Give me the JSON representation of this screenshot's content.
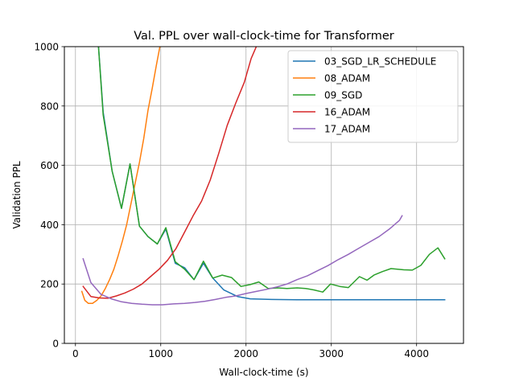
{
  "chart_data": {
    "type": "line",
    "title": "Val. PPL over wall-clock-time for Transformer",
    "xlabel": "Wall-clock-time (s)",
    "ylabel": "Validation PPL",
    "xlim": [
      -130,
      4550
    ],
    "ylim": [
      0,
      1000
    ],
    "xticks": [
      0,
      1000,
      2000,
      3000,
      4000
    ],
    "yticks": [
      0,
      200,
      400,
      600,
      800,
      1000
    ],
    "grid": true,
    "legend_position": "top-right",
    "series": [
      {
        "name": "03_SGD_LR_SCHEDULE",
        "color": "#1f77b4",
        "points": [
          [
            270,
            1000
          ],
          [
            325,
            780
          ],
          [
            430,
            580
          ],
          [
            540,
            455
          ],
          [
            640,
            605
          ],
          [
            750,
            395
          ],
          [
            850,
            360
          ],
          [
            960,
            335
          ],
          [
            1060,
            385
          ],
          [
            1170,
            270
          ],
          [
            1280,
            255
          ],
          [
            1390,
            215
          ],
          [
            1500,
            270
          ],
          [
            1610,
            220
          ],
          [
            1740,
            180
          ],
          [
            1900,
            158
          ],
          [
            2050,
            150
          ],
          [
            2300,
            148
          ],
          [
            2600,
            147
          ],
          [
            3000,
            147
          ],
          [
            3500,
            147
          ],
          [
            4000,
            147
          ],
          [
            4330,
            147
          ]
        ]
      },
      {
        "name": "08_ADAM",
        "color": "#ff7f0e",
        "points": [
          [
            75,
            175
          ],
          [
            110,
            145
          ],
          [
            150,
            135
          ],
          [
            200,
            135
          ],
          [
            250,
            145
          ],
          [
            300,
            160
          ],
          [
            350,
            185
          ],
          [
            400,
            215
          ],
          [
            450,
            250
          ],
          [
            500,
            295
          ],
          [
            550,
            345
          ],
          [
            600,
            400
          ],
          [
            650,
            470
          ],
          [
            700,
            540
          ],
          [
            750,
            610
          ],
          [
            800,
            690
          ],
          [
            850,
            785
          ],
          [
            900,
            860
          ],
          [
            950,
            940
          ],
          [
            990,
            1000
          ]
        ]
      },
      {
        "name": "09_SGD",
        "color": "#2ca02c",
        "points": [
          [
            270,
            1000
          ],
          [
            325,
            770
          ],
          [
            430,
            580
          ],
          [
            540,
            455
          ],
          [
            640,
            605
          ],
          [
            750,
            395
          ],
          [
            850,
            360
          ],
          [
            960,
            335
          ],
          [
            1060,
            390
          ],
          [
            1170,
            275
          ],
          [
            1280,
            250
          ],
          [
            1390,
            215
          ],
          [
            1500,
            277
          ],
          [
            1610,
            220
          ],
          [
            1720,
            230
          ],
          [
            1830,
            222
          ],
          [
            1940,
            192
          ],
          [
            2050,
            198
          ],
          [
            2150,
            207
          ],
          [
            2260,
            185
          ],
          [
            2370,
            187
          ],
          [
            2480,
            185
          ],
          [
            2600,
            187
          ],
          [
            2700,
            185
          ],
          [
            2800,
            180
          ],
          [
            2900,
            173
          ],
          [
            2990,
            200
          ],
          [
            3100,
            192
          ],
          [
            3200,
            188
          ],
          [
            3330,
            225
          ],
          [
            3420,
            213
          ],
          [
            3500,
            230
          ],
          [
            3600,
            242
          ],
          [
            3700,
            252
          ],
          [
            3850,
            248
          ],
          [
            3950,
            247
          ],
          [
            4050,
            263
          ],
          [
            4150,
            300
          ],
          [
            4250,
            322
          ],
          [
            4330,
            285
          ]
        ]
      },
      {
        "name": "16_ADAM",
        "color": "#d62728",
        "points": [
          [
            90,
            192
          ],
          [
            180,
            158
          ],
          [
            280,
            153
          ],
          [
            380,
            152
          ],
          [
            480,
            160
          ],
          [
            580,
            170
          ],
          [
            680,
            183
          ],
          [
            780,
            200
          ],
          [
            880,
            225
          ],
          [
            980,
            250
          ],
          [
            1080,
            280
          ],
          [
            1180,
            320
          ],
          [
            1280,
            375
          ],
          [
            1380,
            430
          ],
          [
            1480,
            480
          ],
          [
            1580,
            550
          ],
          [
            1680,
            640
          ],
          [
            1780,
            735
          ],
          [
            1880,
            810
          ],
          [
            1980,
            880
          ],
          [
            2060,
            960
          ],
          [
            2120,
            1000
          ]
        ]
      },
      {
        "name": "17_ADAM",
        "color": "#9467bd",
        "points": [
          [
            90,
            285
          ],
          [
            180,
            205
          ],
          [
            300,
            165
          ],
          [
            420,
            150
          ],
          [
            540,
            140
          ],
          [
            660,
            135
          ],
          [
            780,
            132
          ],
          [
            900,
            130
          ],
          [
            1020,
            130
          ],
          [
            1150,
            133
          ],
          [
            1280,
            135
          ],
          [
            1400,
            138
          ],
          [
            1520,
            142
          ],
          [
            1640,
            148
          ],
          [
            1760,
            155
          ],
          [
            1880,
            160
          ],
          [
            2000,
            168
          ],
          [
            2120,
            175
          ],
          [
            2240,
            182
          ],
          [
            2360,
            190
          ],
          [
            2480,
            200
          ],
          [
            2600,
            215
          ],
          [
            2720,
            228
          ],
          [
            2840,
            245
          ],
          [
            2960,
            262
          ],
          [
            3080,
            282
          ],
          [
            3200,
            300
          ],
          [
            3320,
            320
          ],
          [
            3440,
            340
          ],
          [
            3560,
            360
          ],
          [
            3680,
            385
          ],
          [
            3800,
            415
          ],
          [
            3830,
            430
          ]
        ]
      }
    ]
  }
}
